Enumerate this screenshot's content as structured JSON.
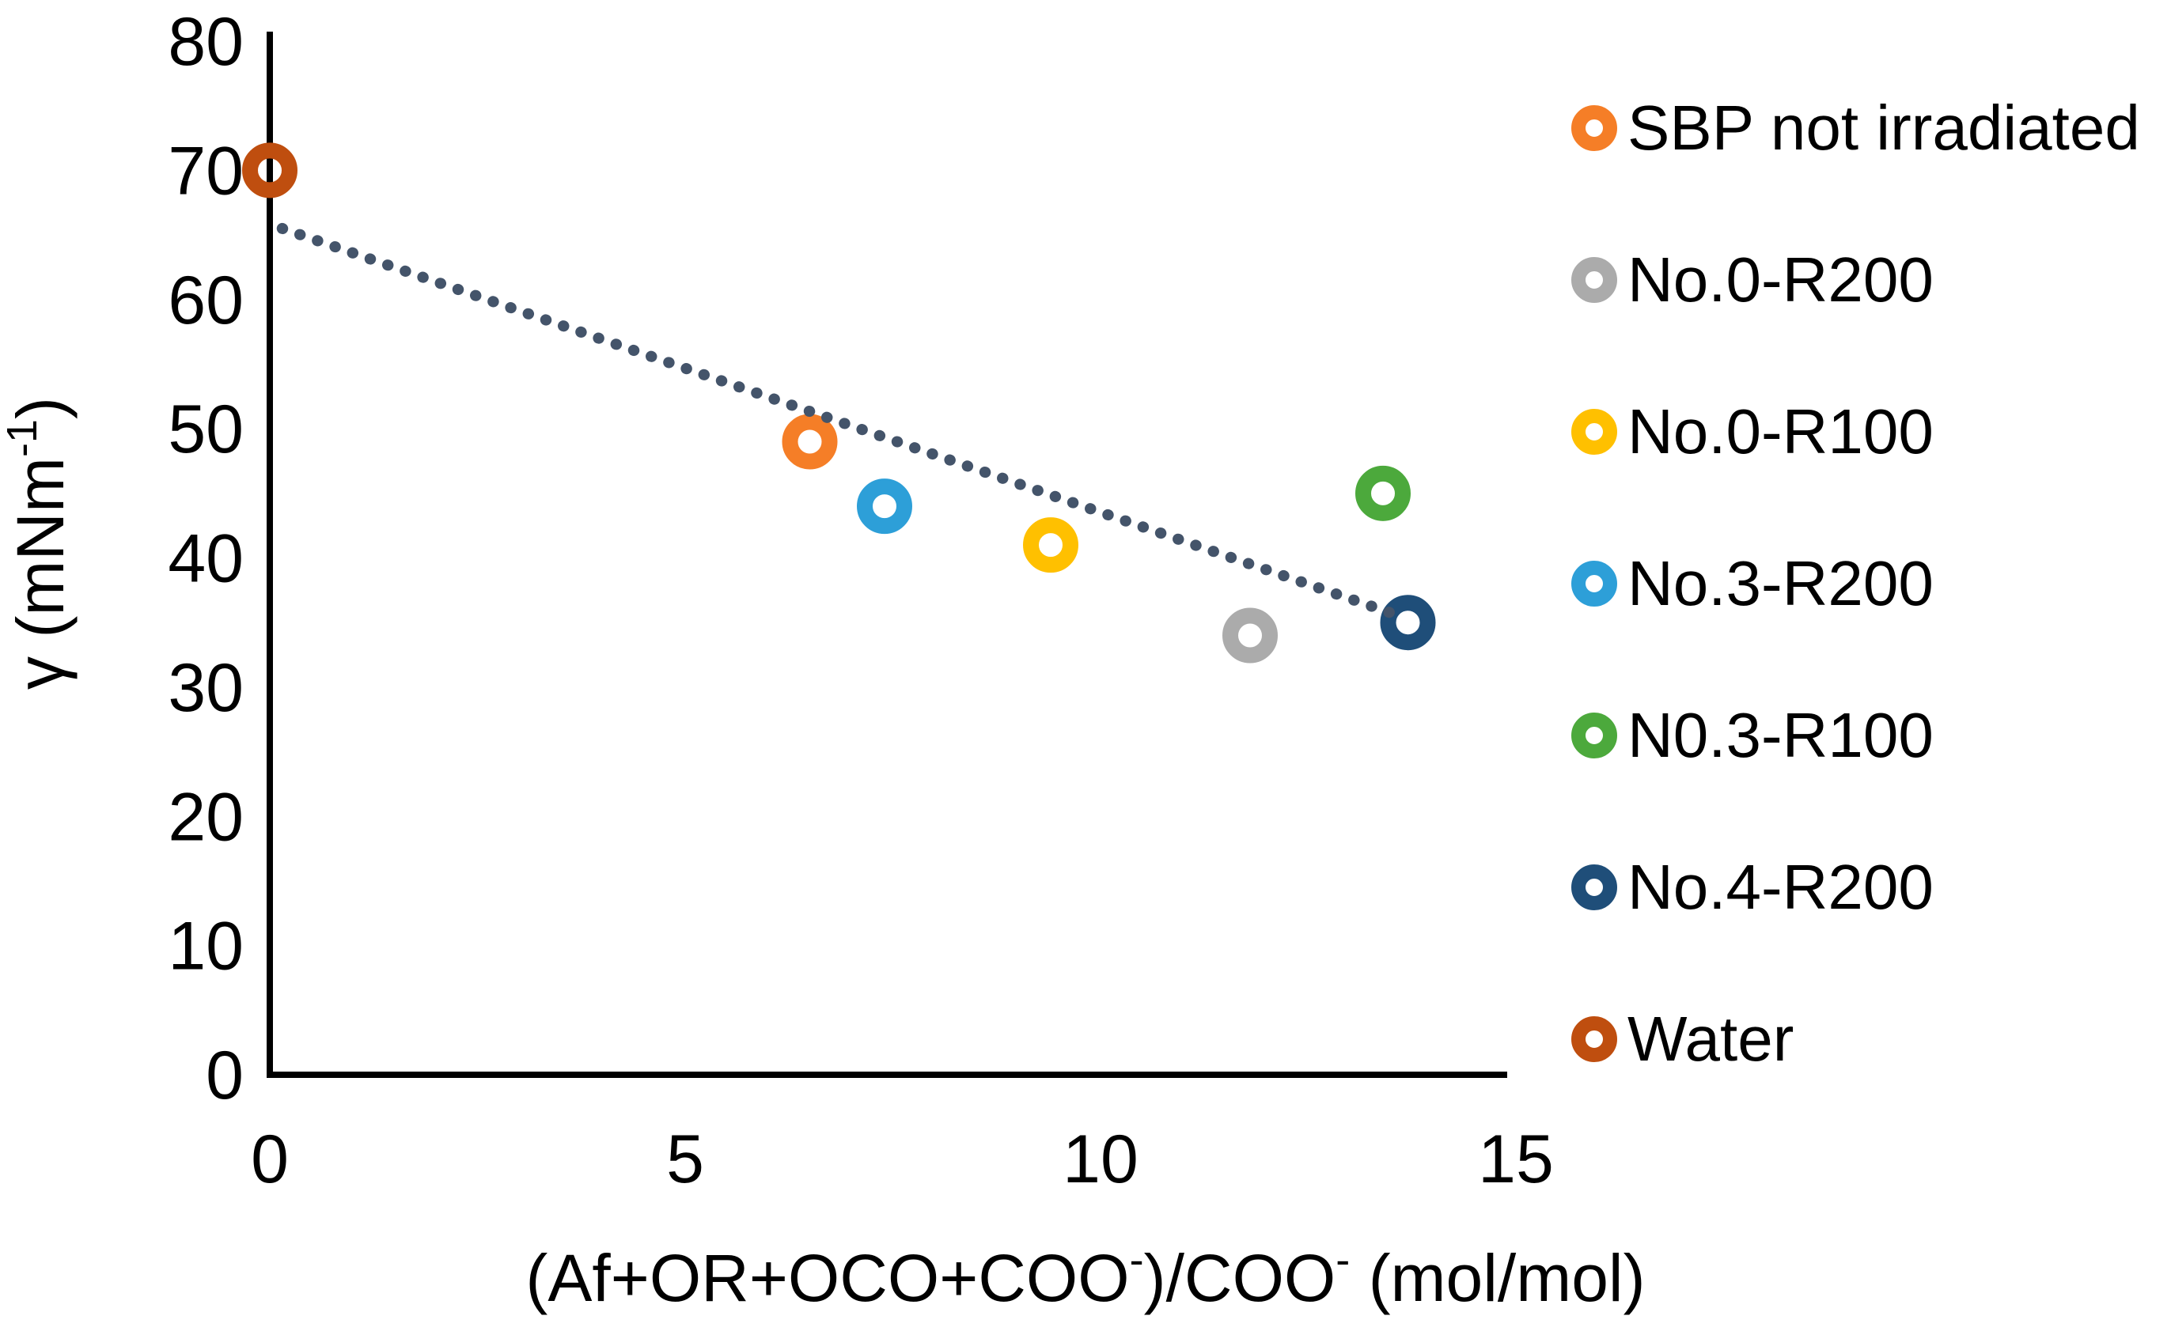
{
  "figure": {
    "background": "#FFFFFF",
    "axis_color": "#000000",
    "text_color": "#000000"
  },
  "chart_data": {
    "type": "scatter",
    "title": "",
    "xlabel_plain": "(Af+OR+OCO+COO-)/COO- (mol/mol)",
    "ylabel_plain": "γ (mNm-1)",
    "xlabel_segments": [
      {
        "text": "(Af+OR+OCO+COO",
        "sup": false
      },
      {
        "text": "-",
        "sup": true
      },
      {
        "text": ")/COO",
        "sup": false
      },
      {
        "text": "-",
        "sup": true
      },
      {
        "text": " (mol/mol)",
        "sup": false
      }
    ],
    "ylabel_segments": [
      {
        "text": "γ (mNm",
        "sup": false
      },
      {
        "text": "-1",
        "sup": true
      },
      {
        "text": ")",
        "sup": false
      }
    ],
    "xlim": [
      0,
      15
    ],
    "ylim": [
      0,
      80
    ],
    "x_ticks": [
      0,
      5,
      10,
      15
    ],
    "y_ticks": [
      0,
      10,
      20,
      30,
      40,
      50,
      60,
      70,
      80
    ],
    "grid": false,
    "legend_position": "right",
    "series": [
      {
        "name": "SBP not irradiated",
        "color": "#F57E27",
        "points": [
          [
            6.5,
            49
          ]
        ]
      },
      {
        "name": "No.0-R200",
        "color": "#ABABAB",
        "points": [
          [
            11.8,
            34
          ]
        ]
      },
      {
        "name": "No.0-R100",
        "color": "#FFC000",
        "points": [
          [
            9.4,
            41
          ]
        ]
      },
      {
        "name": "No.3-R200",
        "color": "#2D9FD8",
        "points": [
          [
            7.4,
            44
          ]
        ]
      },
      {
        "name": "N0.3-R100",
        "color": "#4CA93C",
        "points": [
          [
            13.4,
            45
          ]
        ]
      },
      {
        "name": "No.4-R200",
        "color": "#1F4E79",
        "points": [
          [
            13.7,
            35
          ]
        ]
      },
      {
        "name": "Water",
        "color": "#BF4E0F",
        "points": [
          [
            0,
            70
          ]
        ]
      }
    ],
    "trendline": {
      "style": "dotted",
      "color": "#44546A",
      "x1": 0.15,
      "y1": 65.5,
      "x2": 13.65,
      "y2": 35.4
    }
  }
}
